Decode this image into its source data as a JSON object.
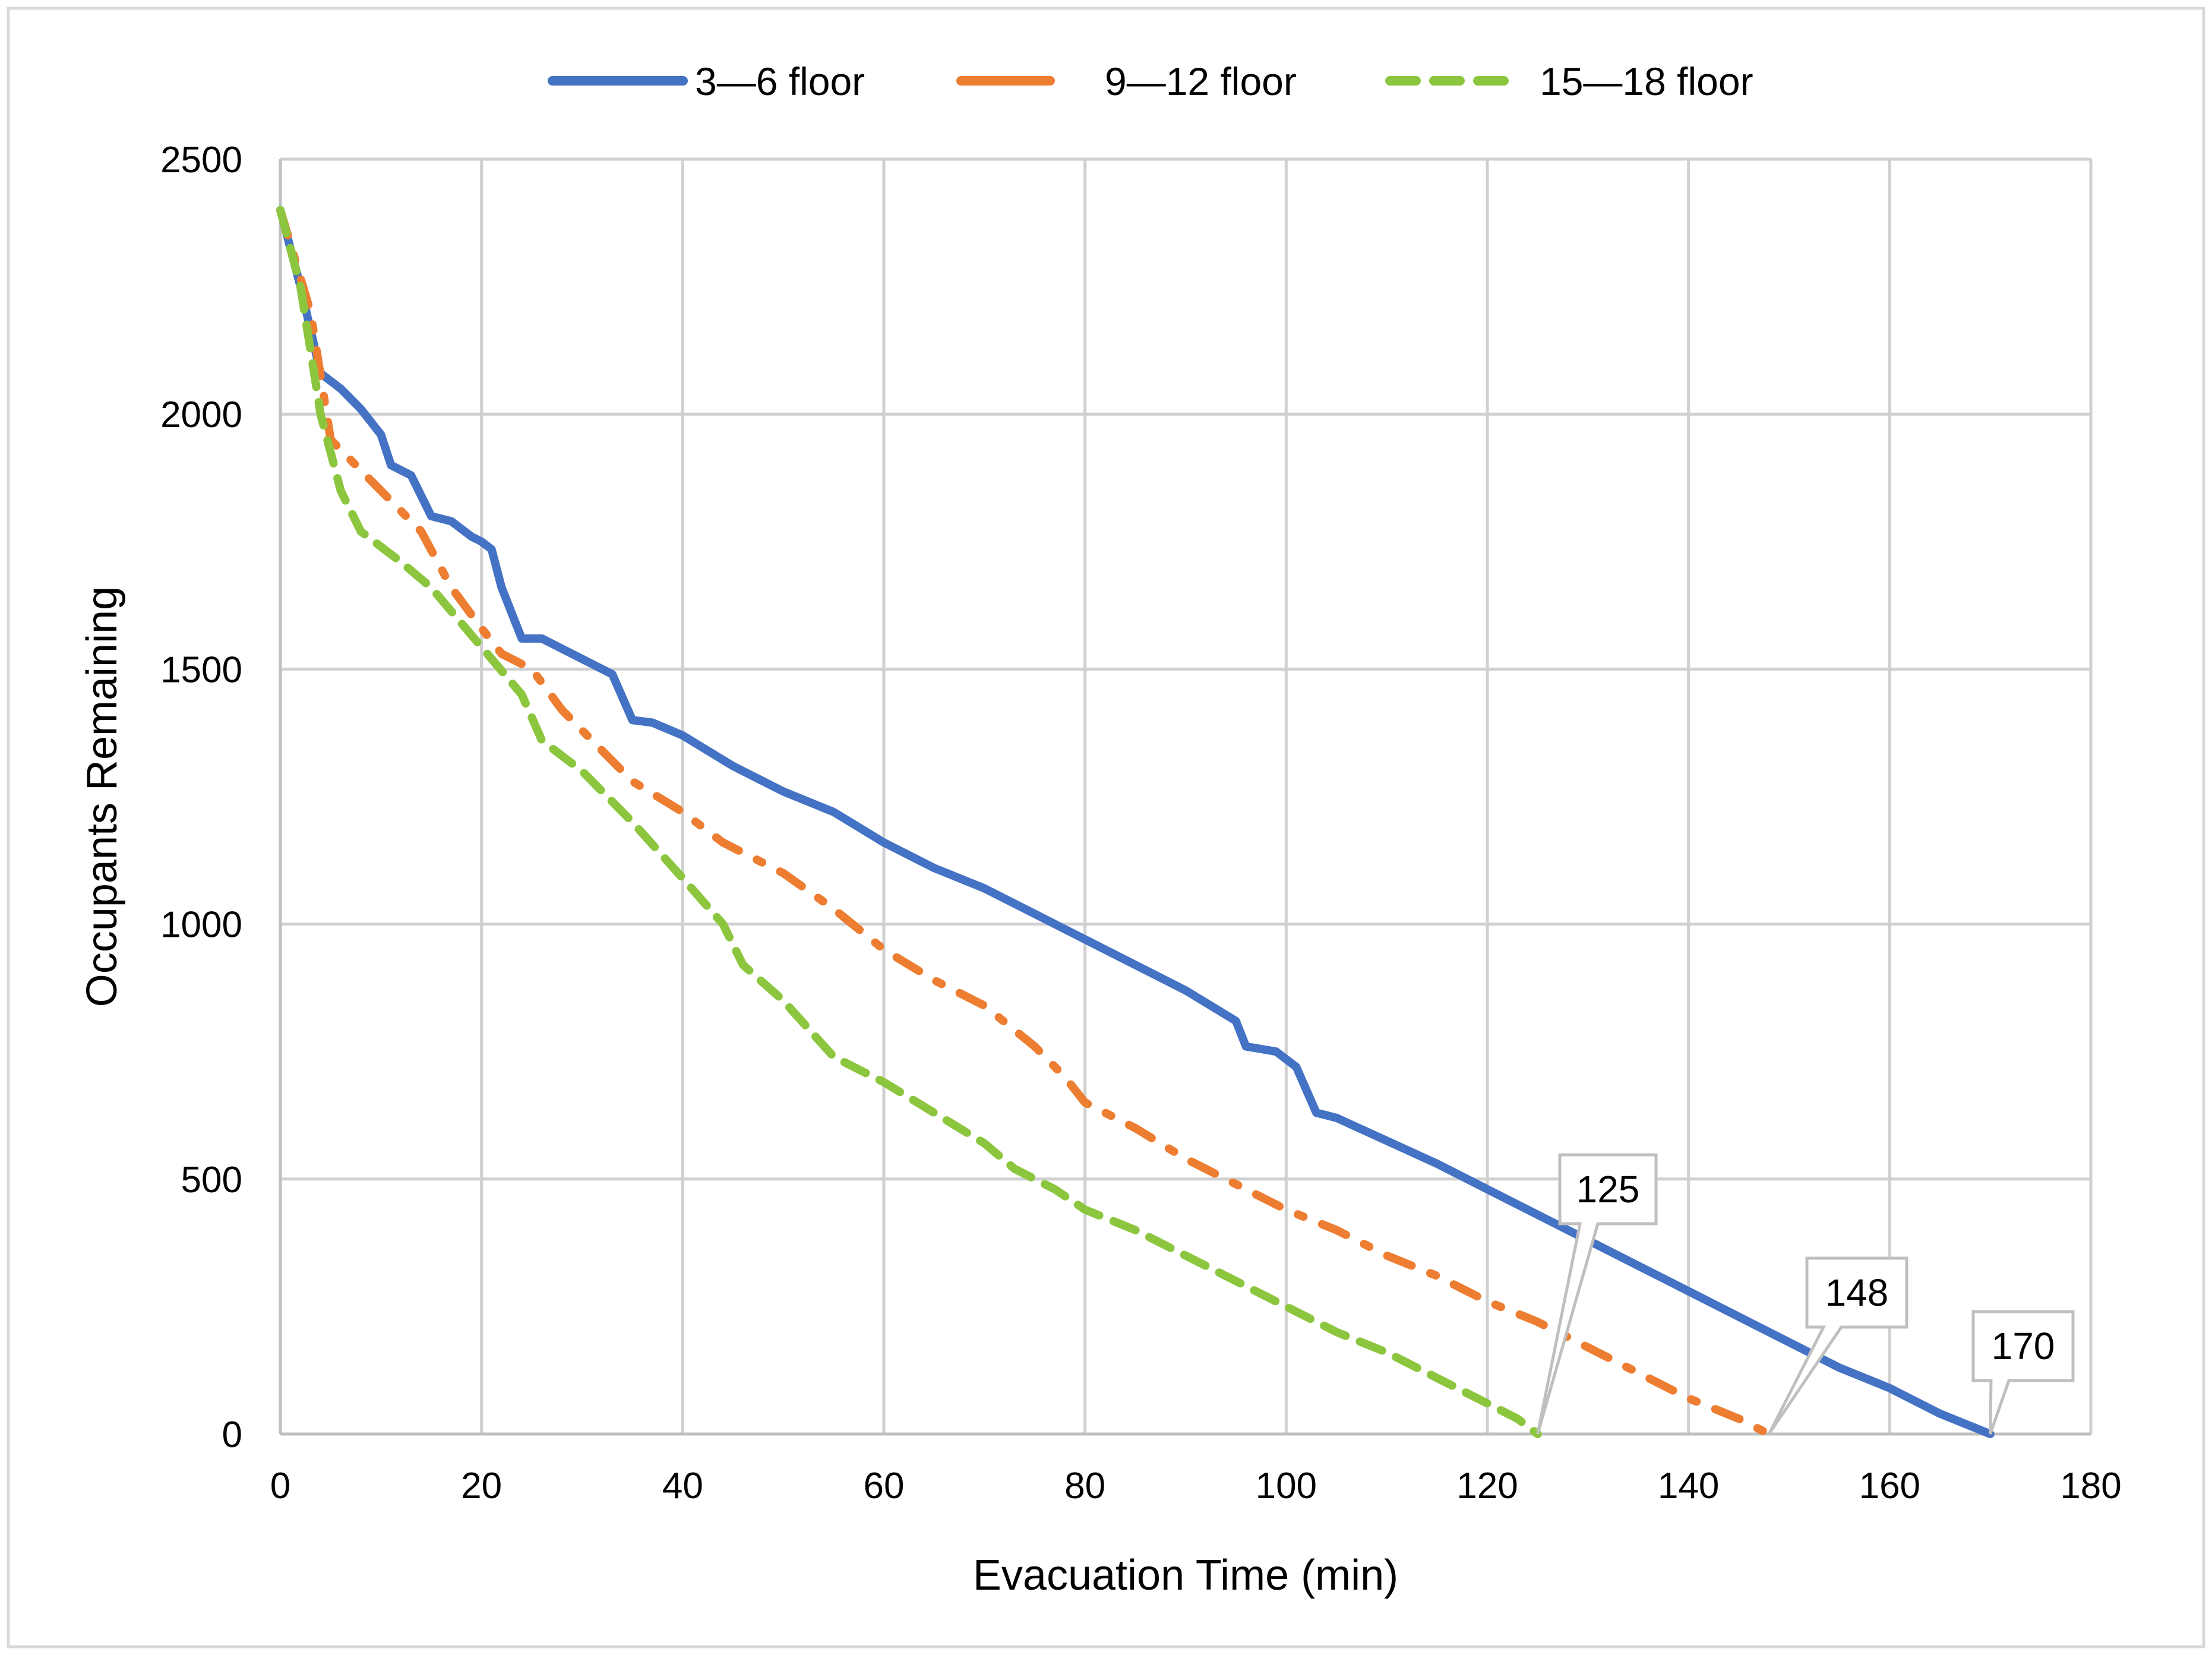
{
  "chart_data": {
    "type": "line",
    "title": "",
    "xlabel": "Evacuation Time (min)",
    "ylabel": "Occupants Remaining",
    "xlim": [
      0,
      180
    ],
    "ylim": [
      0,
      2500
    ],
    "xticks": [
      "0",
      "20",
      "40",
      "60",
      "80",
      "100",
      "120",
      "140",
      "160",
      "180"
    ],
    "yticks": [
      "0",
      "500",
      "1000",
      "1500",
      "2000",
      "2500"
    ],
    "grid": true,
    "legend_position": "top",
    "series": [
      {
        "name": "3—6 floor",
        "color": "#4472C4",
        "style": "solid",
        "points": [
          [
            0,
            2400
          ],
          [
            2,
            2250
          ],
          [
            4,
            2080
          ],
          [
            6,
            2050
          ],
          [
            8,
            2010
          ],
          [
            10,
            1960
          ],
          [
            11,
            1900
          ],
          [
            13,
            1880
          ],
          [
            15,
            1800
          ],
          [
            17,
            1790
          ],
          [
            19,
            1760
          ],
          [
            20,
            1750
          ],
          [
            21,
            1735
          ],
          [
            22,
            1660
          ],
          [
            24,
            1560
          ],
          [
            26,
            1560
          ],
          [
            30,
            1520
          ],
          [
            33,
            1490
          ],
          [
            35,
            1400
          ],
          [
            37,
            1395
          ],
          [
            40,
            1370
          ],
          [
            45,
            1310
          ],
          [
            50,
            1260
          ],
          [
            55,
            1220
          ],
          [
            60,
            1160
          ],
          [
            65,
            1110
          ],
          [
            70,
            1070
          ],
          [
            75,
            1020
          ],
          [
            80,
            970
          ],
          [
            85,
            920
          ],
          [
            90,
            870
          ],
          [
            95,
            810
          ],
          [
            96,
            760
          ],
          [
            99,
            750
          ],
          [
            101,
            720
          ],
          [
            103,
            630
          ],
          [
            105,
            620
          ],
          [
            110,
            575
          ],
          [
            115,
            530
          ],
          [
            120,
            480
          ],
          [
            125,
            430
          ],
          [
            130,
            380
          ],
          [
            135,
            330
          ],
          [
            140,
            280
          ],
          [
            145,
            230
          ],
          [
            150,
            180
          ],
          [
            155,
            130
          ],
          [
            160,
            90
          ],
          [
            165,
            40
          ],
          [
            170,
            0
          ]
        ]
      },
      {
        "name": "9—12 floor",
        "color": "#ED7D31",
        "style": "dash-dot",
        "points": [
          [
            0,
            2400
          ],
          [
            3,
            2200
          ],
          [
            5,
            1950
          ],
          [
            10,
            1850
          ],
          [
            14,
            1770
          ],
          [
            17,
            1660
          ],
          [
            20,
            1580
          ],
          [
            22,
            1530
          ],
          [
            25,
            1500
          ],
          [
            28,
            1420
          ],
          [
            30,
            1380
          ],
          [
            35,
            1280
          ],
          [
            40,
            1220
          ],
          [
            44,
            1160
          ],
          [
            46,
            1140
          ],
          [
            50,
            1100
          ],
          [
            55,
            1030
          ],
          [
            60,
            950
          ],
          [
            65,
            890
          ],
          [
            70,
            840
          ],
          [
            75,
            760
          ],
          [
            78,
            700
          ],
          [
            80,
            650
          ],
          [
            85,
            600
          ],
          [
            90,
            540
          ],
          [
            95,
            490
          ],
          [
            100,
            440
          ],
          [
            105,
            400
          ],
          [
            110,
            350
          ],
          [
            115,
            310
          ],
          [
            120,
            260
          ],
          [
            125,
            220
          ],
          [
            130,
            170
          ],
          [
            135,
            120
          ],
          [
            140,
            70
          ],
          [
            145,
            30
          ],
          [
            148,
            0
          ]
        ]
      },
      {
        "name": "15—18 floor",
        "color": "#8CC63F",
        "style": "dashed",
        "points": [
          [
            0,
            2400
          ],
          [
            2,
            2250
          ],
          [
            4,
            2000
          ],
          [
            6,
            1850
          ],
          [
            8,
            1770
          ],
          [
            12,
            1710
          ],
          [
            15,
            1660
          ],
          [
            18,
            1590
          ],
          [
            21,
            1520
          ],
          [
            24,
            1450
          ],
          [
            26,
            1360
          ],
          [
            30,
            1300
          ],
          [
            35,
            1200
          ],
          [
            40,
            1090
          ],
          [
            44,
            1000
          ],
          [
            46,
            920
          ],
          [
            50,
            850
          ],
          [
            55,
            740
          ],
          [
            57,
            720
          ],
          [
            60,
            690
          ],
          [
            65,
            630
          ],
          [
            70,
            570
          ],
          [
            73,
            520
          ],
          [
            77,
            480
          ],
          [
            80,
            440
          ],
          [
            85,
            400
          ],
          [
            90,
            350
          ],
          [
            95,
            300
          ],
          [
            100,
            250
          ],
          [
            105,
            200
          ],
          [
            110,
            160
          ],
          [
            115,
            110
          ],
          [
            120,
            60
          ],
          [
            123,
            30
          ],
          [
            125,
            0
          ]
        ]
      }
    ],
    "annotations": [
      {
        "label": "125",
        "x": 125,
        "y": 0
      },
      {
        "label": "148",
        "x": 148,
        "y": 0
      },
      {
        "label": "170",
        "x": 170,
        "y": 0
      }
    ]
  }
}
